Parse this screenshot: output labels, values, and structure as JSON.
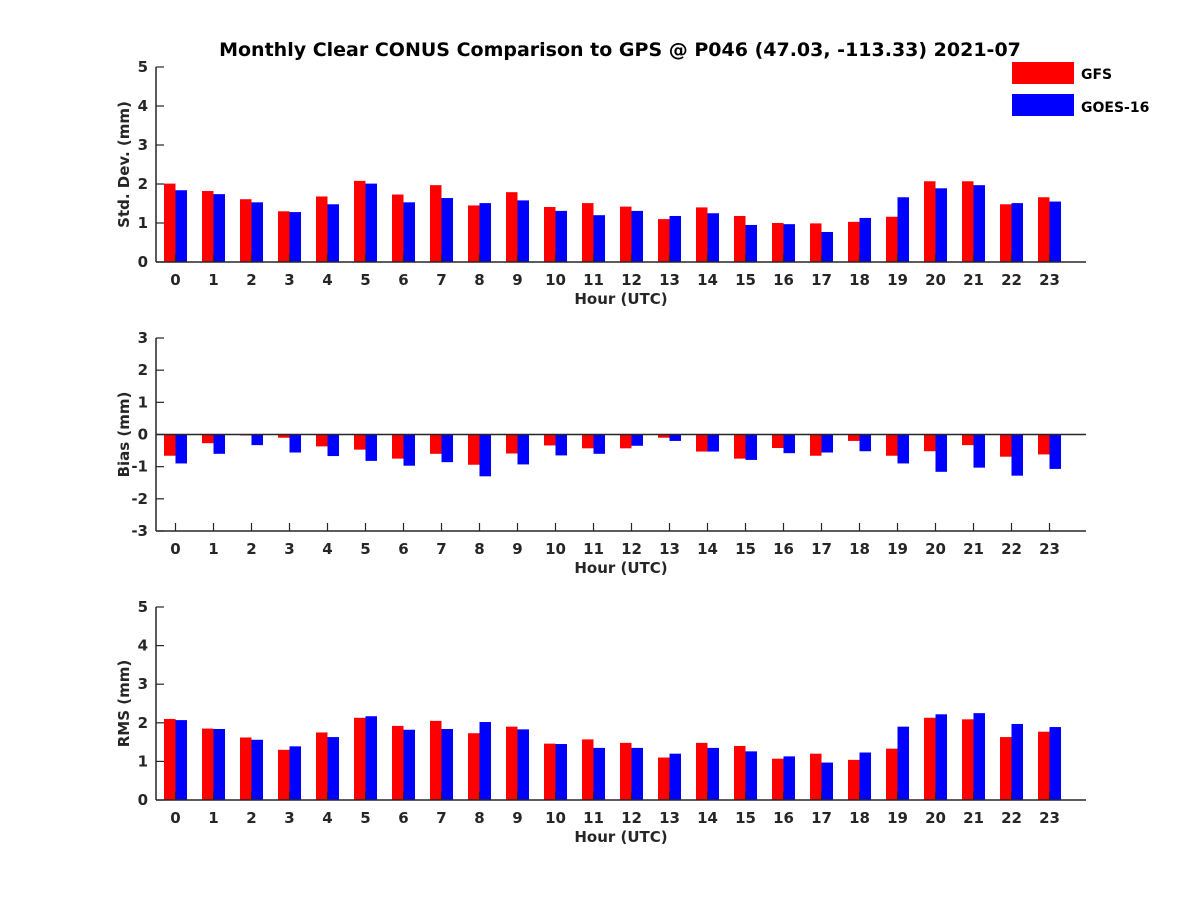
{
  "colors": {
    "gfs": "#ff0000",
    "goes": "#0000ff",
    "axis": "#262626",
    "background": "#ffffff"
  },
  "chart_data": {
    "type": "bar",
    "title": "Monthly Clear CONUS Comparison to GPS @ P046 (47.03, -113.33) 2021-07",
    "legend": {
      "placement": "top-right",
      "entries": [
        {
          "name": "GFS",
          "color": "#ff0000"
        },
        {
          "name": "GOES-16",
          "color": "#0000ff"
        }
      ]
    },
    "categories": [
      "0",
      "1",
      "2",
      "3",
      "4",
      "5",
      "6",
      "7",
      "8",
      "9",
      "10",
      "11",
      "12",
      "13",
      "14",
      "15",
      "16",
      "17",
      "18",
      "19",
      "20",
      "21",
      "22",
      "23"
    ],
    "panels": [
      {
        "id": "stddev",
        "xlabel": "Hour (UTC)",
        "ylabel": "Std. Dev. (mm)",
        "ylim": [
          0,
          5
        ],
        "yticks": [
          "0",
          "1",
          "2",
          "3",
          "4",
          "5"
        ],
        "zero_line": false,
        "series": [
          {
            "name": "GFS",
            "values": [
              2.01,
              1.82,
              1.61,
              1.3,
              1.68,
              2.08,
              1.73,
              1.97,
              1.45,
              1.79,
              1.41,
              1.51,
              1.42,
              1.1,
              1.4,
              1.18,
              1.0,
              0.99,
              1.03,
              1.16,
              2.07,
              2.07,
              1.48,
              1.66
            ]
          },
          {
            "name": "GOES-16",
            "values": [
              1.84,
              1.74,
              1.53,
              1.28,
              1.48,
              2.01,
              1.53,
              1.64,
              1.51,
              1.58,
              1.31,
              1.2,
              1.31,
              1.18,
              1.25,
              0.95,
              0.97,
              0.77,
              1.13,
              1.66,
              1.89,
              1.97,
              1.51,
              1.55
            ]
          }
        ]
      },
      {
        "id": "bias",
        "xlabel": "Hour (UTC)",
        "ylabel": "Bias (mm)",
        "ylim": [
          -3,
          3
        ],
        "yticks": [
          "-3",
          "-2",
          "-1",
          "0",
          "1",
          "2",
          "3"
        ],
        "zero_line": true,
        "series": [
          {
            "name": "GFS",
            "values": [
              -0.66,
              -0.27,
              -0.03,
              -0.1,
              -0.37,
              -0.47,
              -0.75,
              -0.6,
              -0.94,
              -0.59,
              -0.34,
              -0.43,
              -0.43,
              -0.1,
              -0.53,
              -0.75,
              -0.42,
              -0.66,
              -0.2,
              -0.66,
              -0.52,
              -0.33,
              -0.69,
              -0.62
            ]
          },
          {
            "name": "GOES-16",
            "values": [
              -0.9,
              -0.6,
              -0.33,
              -0.56,
              -0.67,
              -0.82,
              -0.97,
              -0.86,
              -1.3,
              -0.93,
              -0.65,
              -0.6,
              -0.35,
              -0.2,
              -0.53,
              -0.79,
              -0.58,
              -0.56,
              -0.52,
              -0.9,
              -1.16,
              -1.03,
              -1.28,
              -1.07
            ]
          }
        ]
      },
      {
        "id": "rms",
        "xlabel": "Hour (UTC)",
        "ylabel": "RMS (mm)",
        "ylim": [
          0,
          5
        ],
        "yticks": [
          "0",
          "1",
          "2",
          "3",
          "4",
          "5"
        ],
        "zero_line": false,
        "series": [
          {
            "name": "GFS",
            "values": [
              2.1,
              1.85,
              1.62,
              1.3,
              1.75,
              2.13,
              1.92,
              2.05,
              1.73,
              1.9,
              1.46,
              1.57,
              1.48,
              1.1,
              1.48,
              1.4,
              1.07,
              1.2,
              1.04,
              1.33,
              2.13,
              2.09,
              1.63,
              1.77
            ]
          },
          {
            "name": "GOES-16",
            "values": [
              2.07,
              1.84,
              1.56,
              1.39,
              1.63,
              2.17,
              1.82,
              1.84,
              2.02,
              1.83,
              1.45,
              1.35,
              1.35,
              1.2,
              1.35,
              1.26,
              1.13,
              0.97,
              1.23,
              1.9,
              2.22,
              2.25,
              1.97,
              1.89
            ]
          }
        ]
      }
    ]
  }
}
